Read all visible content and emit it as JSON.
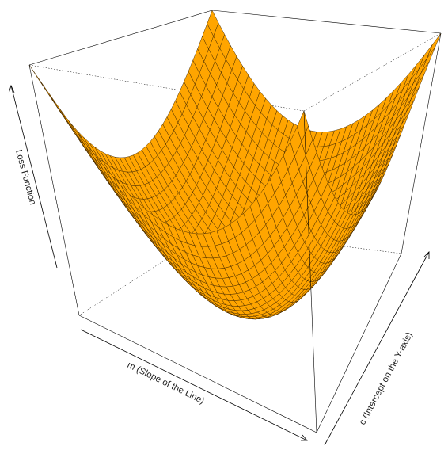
{
  "chart_data": {
    "type": "surface",
    "title": "",
    "xlabel": "m (Slope of the Line)",
    "ylabel": "c (Intercept on the Y-axis)",
    "zlabel": "Loss Function",
    "surface_color": "#ffa500",
    "edge_color": "#3a2200",
    "grid_resolution": 36,
    "function": "bowl-shaped paraboloid (quadratic in m and c)",
    "x_range": [
      -1,
      1
    ],
    "y_range": [
      -1,
      1
    ],
    "box": true,
    "ticks": false
  }
}
